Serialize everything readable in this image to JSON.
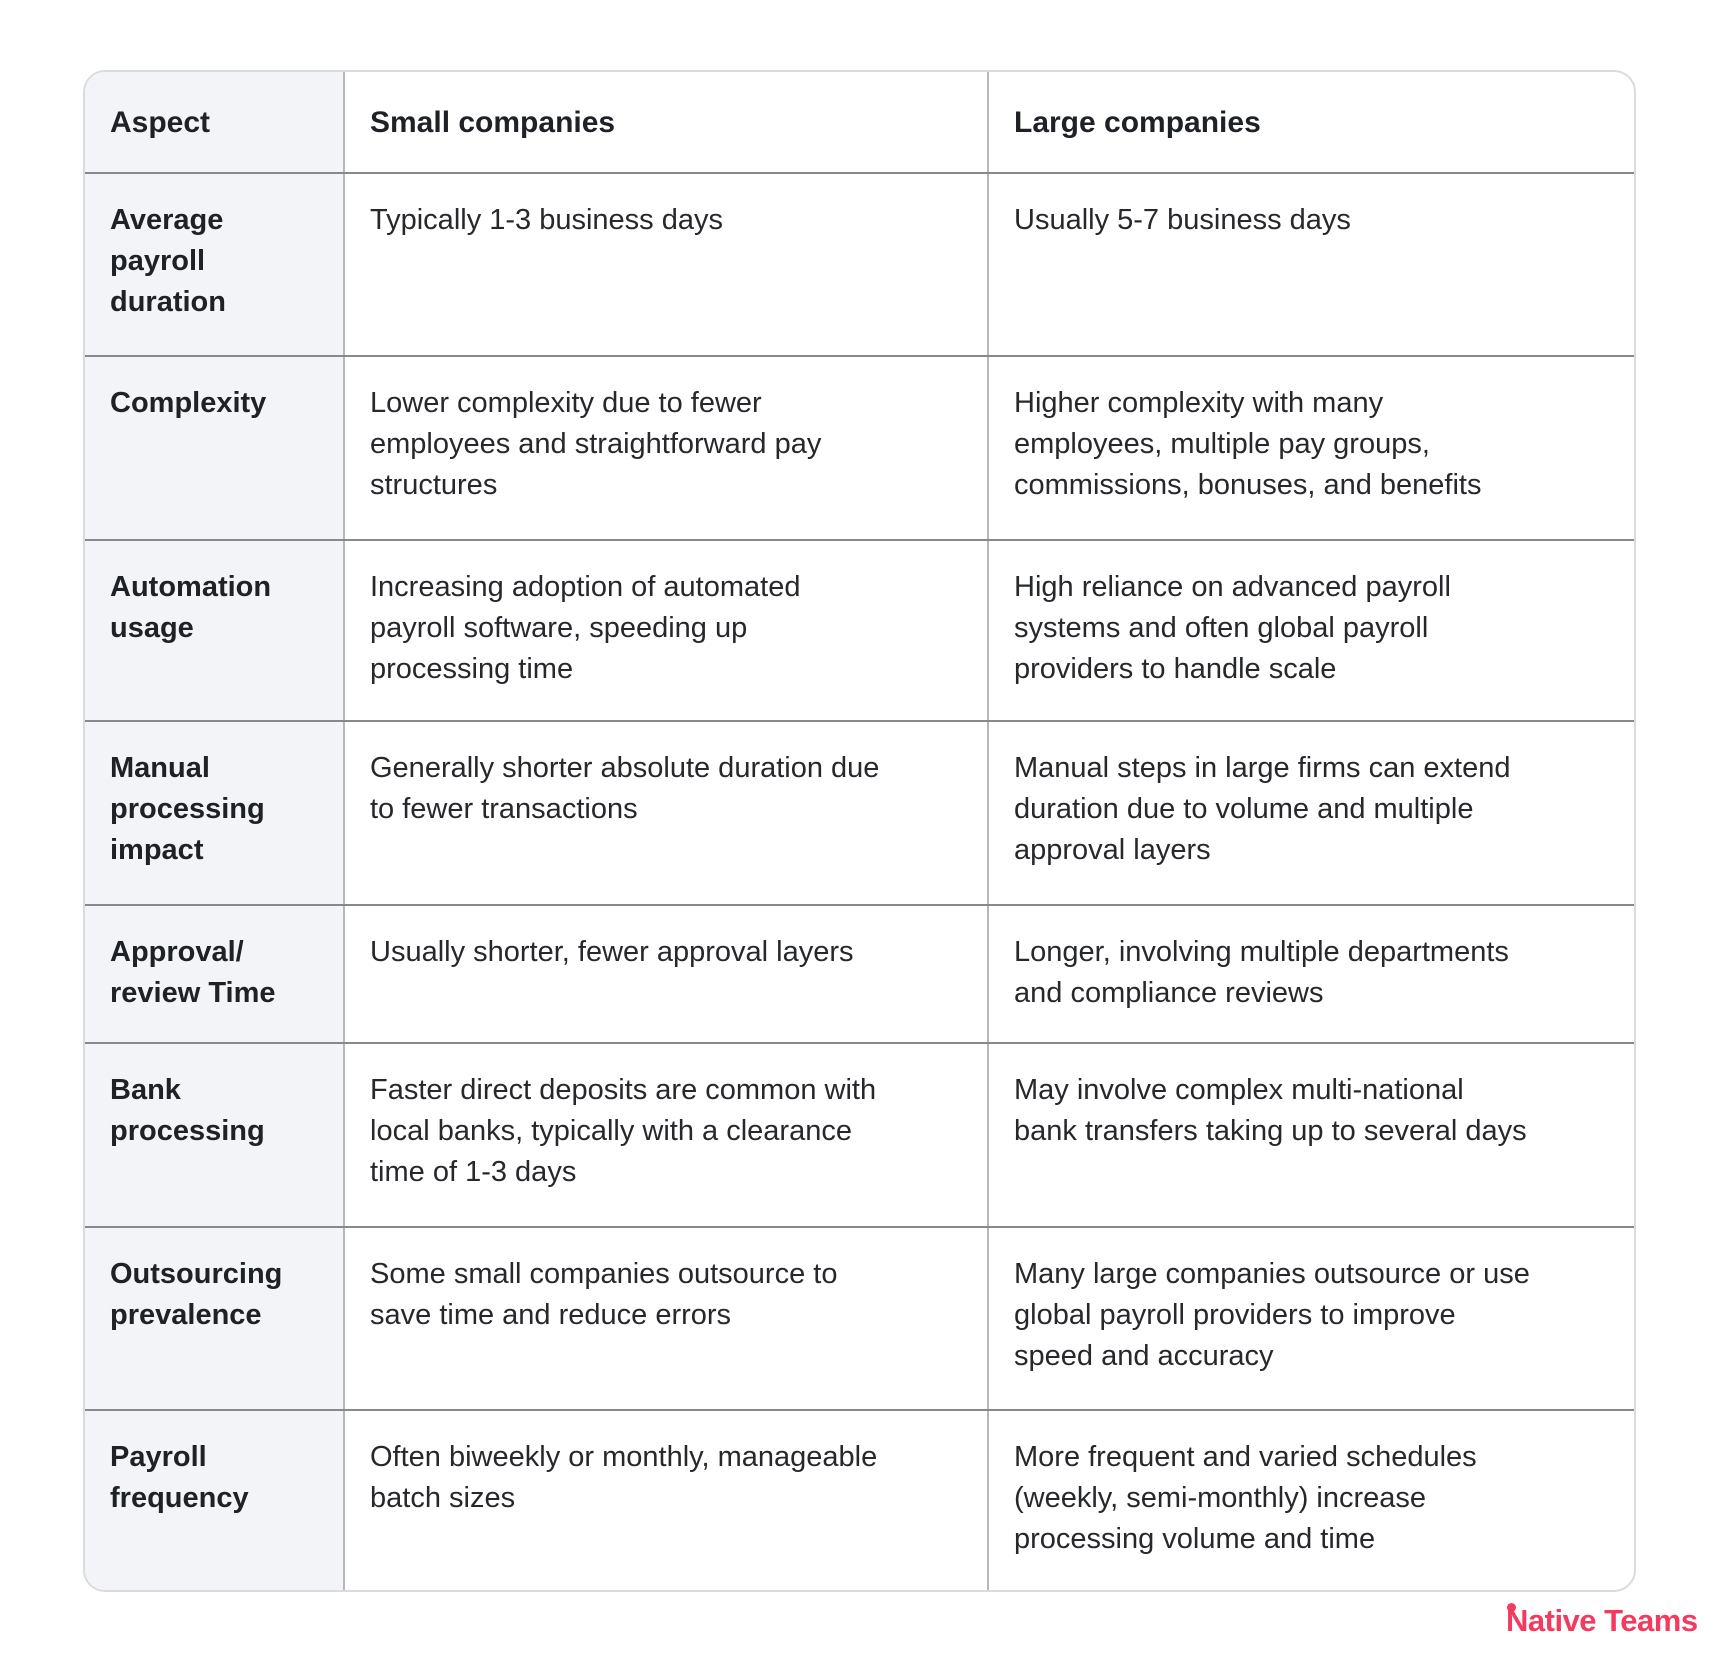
{
  "table": {
    "columns": [
      "Aspect",
      "Small companies",
      "Large companies"
    ],
    "rows": [
      {
        "aspect": "Average\npayroll\nduration",
        "small": "Typically 1-3 business days",
        "large": "Usually 5-7 business days"
      },
      {
        "aspect": "Complexity",
        "small": "Lower complexity due to fewer\nemployees and straightforward pay\nstructures",
        "large": "Higher complexity with many\nemployees, multiple pay groups,\ncommissions, bonuses, and benefits"
      },
      {
        "aspect": "Automation\nusage",
        "small": "Increasing adoption of automated\npayroll software, speeding up\nprocessing time",
        "large": "High reliance on advanced payroll\nsystems and often global payroll\nproviders to handle scale"
      },
      {
        "aspect": "Manual\nprocessing\nimpact",
        "small": "Generally shorter absolute duration due\nto fewer transactions",
        "large": "Manual steps in large firms can extend\nduration due to volume and multiple\napproval layers"
      },
      {
        "aspect": "Approval/\nreview Time",
        "small": "Usually shorter, fewer approval layers",
        "large": "Longer, involving multiple departments\nand compliance reviews"
      },
      {
        "aspect": "Bank\nprocessing",
        "small": "Faster direct deposits are common with\nlocal banks, typically with a clearance\ntime of 1-3 days",
        "large": "May involve complex multi-national\nbank transfers taking up to several days"
      },
      {
        "aspect": "Outsourcing\nprevalence",
        "small": "Some small companies outsource to\nsave time and reduce errors",
        "large": "Many large companies outsource or use\nglobal payroll providers to improve\nspeed and accuracy"
      },
      {
        "aspect": "Payroll\nfrequency",
        "small": "Often biweekly or monthly, manageable\nbatch sizes",
        "large": "More frequent and varied schedules\n(weekly, semi-monthly) increase\nprocessing volume and time"
      }
    ]
  },
  "branding": {
    "logo_text": "Native Teams",
    "logo_color": "#f43a5f"
  },
  "colors": {
    "aspect_column_background": "#f3f4f8",
    "row_separator": "#87898d",
    "column_separator": "#b6b8bb",
    "outer_border": "#d9dbdf",
    "heading_text": "#1e2126",
    "body_text": "#26282c",
    "page_background": "#ffffff"
  }
}
